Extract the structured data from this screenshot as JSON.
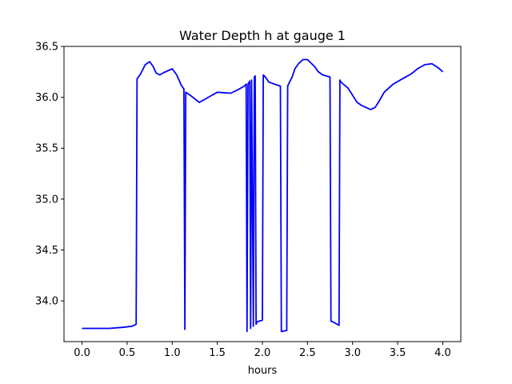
{
  "chart_data": {
    "type": "line",
    "title": "Water Depth h at gauge 1",
    "xlabel": "hours",
    "ylabel": "",
    "xlim": [
      -0.2,
      4.2
    ],
    "ylim": [
      33.6,
      36.5
    ],
    "xticks": [
      0.0,
      0.5,
      1.0,
      1.5,
      2.0,
      2.5,
      3.0,
      3.5,
      4.0
    ],
    "xtick_labels": [
      "0.0",
      "0.5",
      "1.0",
      "1.5",
      "2.0",
      "2.5",
      "3.0",
      "3.5",
      "4.0"
    ],
    "yticks": [
      34.0,
      34.5,
      35.0,
      35.5,
      36.0,
      36.5
    ],
    "ytick_labels": [
      "34.0",
      "34.5",
      "35.0",
      "35.5",
      "36.0",
      "36.5"
    ],
    "grid": false,
    "legend": "none",
    "colors": {
      "line": "#0000ff",
      "axes": "#000000",
      "background": "#ffffff"
    },
    "series": [
      {
        "x": [
          0.0,
          0.3,
          0.45,
          0.55,
          0.6,
          0.61,
          0.65,
          0.7,
          0.75,
          0.79,
          0.82,
          0.86,
          0.9,
          1.0,
          1.05,
          1.1,
          1.13,
          1.14,
          1.15,
          1.2,
          1.3,
          1.4,
          1.5,
          1.65,
          1.72,
          1.8,
          1.82,
          1.83,
          1.84,
          1.86,
          1.87,
          1.88,
          1.9,
          1.91,
          1.92,
          1.93,
          1.94,
          1.95,
          1.96,
          2.0,
          2.01,
          2.02,
          2.04,
          2.07,
          2.1,
          2.2,
          2.21,
          2.22,
          2.27,
          2.28,
          2.29,
          2.33,
          2.36,
          2.4,
          2.45,
          2.5,
          2.58,
          2.62,
          2.67,
          2.75,
          2.76,
          2.77,
          2.85,
          2.86,
          2.87,
          2.95,
          3.05,
          3.1,
          3.2,
          3.25,
          3.3,
          3.35,
          3.45,
          3.55,
          3.65,
          3.72,
          3.8,
          3.88,
          3.95,
          4.0
        ],
        "y": [
          33.73,
          33.73,
          33.74,
          33.75,
          33.77,
          36.18,
          36.23,
          36.32,
          36.35,
          36.3,
          36.24,
          36.22,
          36.24,
          36.28,
          36.22,
          36.12,
          36.08,
          33.72,
          36.05,
          36.02,
          35.95,
          36.0,
          36.05,
          36.04,
          36.07,
          36.11,
          36.13,
          33.7,
          36.13,
          36.16,
          33.73,
          36.17,
          33.75,
          36.2,
          36.21,
          33.77,
          33.79,
          33.8,
          33.8,
          33.81,
          36.22,
          36.21,
          36.19,
          36.15,
          36.14,
          36.11,
          33.7,
          33.7,
          33.71,
          36.11,
          36.13,
          36.2,
          36.28,
          36.33,
          36.37,
          36.37,
          36.3,
          36.25,
          36.22,
          36.2,
          33.8,
          33.8,
          33.76,
          36.17,
          36.15,
          36.09,
          35.95,
          35.92,
          35.88,
          35.9,
          35.97,
          36.05,
          36.13,
          36.18,
          36.23,
          36.28,
          36.32,
          36.33,
          36.29,
          36.25
        ]
      }
    ]
  }
}
